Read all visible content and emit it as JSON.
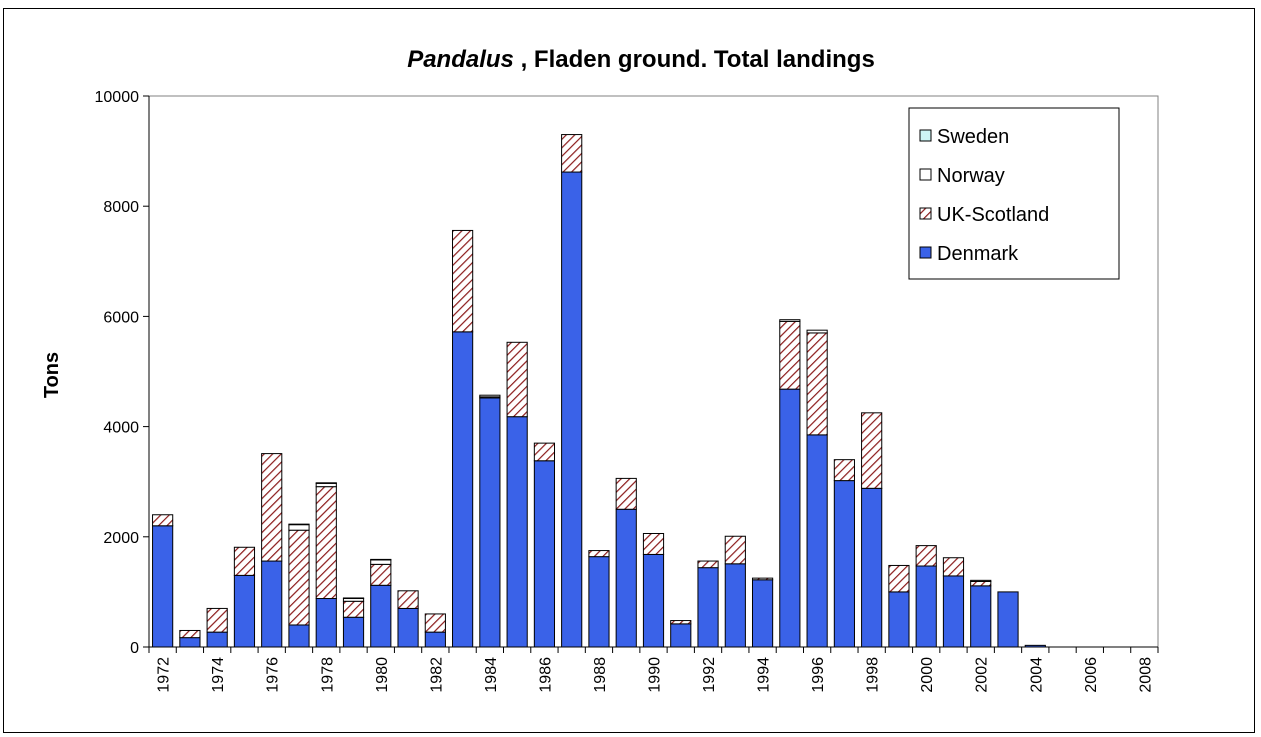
{
  "chart_data": {
    "type": "bar",
    "stacked": true,
    "title_italic": "Pandalus",
    "title_rest": " , Fladen ground. Total landings",
    "xlabel": "",
    "ylabel": "Tons",
    "ylim": [
      0,
      10000
    ],
    "yticks": [
      0,
      2000,
      4000,
      6000,
      8000,
      10000
    ],
    "categories": [
      "1972",
      "1973",
      "1974",
      "1975",
      "1976",
      "1977",
      "1978",
      "1979",
      "1980",
      "1981",
      "1982",
      "1983",
      "1984",
      "1985",
      "1986",
      "1987",
      "1988",
      "1989",
      "1990",
      "1991",
      "1992",
      "1993",
      "1994",
      "1995",
      "1996",
      "1997",
      "1998",
      "1999",
      "2000",
      "2001",
      "2002",
      "2003",
      "2004",
      "2005",
      "2006",
      "2007",
      "2008"
    ],
    "xtick_labels": [
      "1972",
      "",
      "1974",
      "",
      "1976",
      "",
      "1978",
      "",
      "1980",
      "",
      "1982",
      "",
      "1984",
      "",
      "1986",
      "",
      "1988",
      "",
      "1990",
      "",
      "1992",
      "",
      "1994",
      "",
      "1996",
      "",
      "1998",
      "",
      "2000",
      "",
      "2002",
      "",
      "2004",
      "",
      "2006",
      "",
      "2008"
    ],
    "series": [
      {
        "name": "Denmark",
        "color": "#3a62e8",
        "pattern": "solid",
        "values": [
          2200,
          170,
          270,
          1300,
          1560,
          400,
          880,
          540,
          1120,
          700,
          270,
          5720,
          4520,
          4180,
          3380,
          8620,
          1640,
          2500,
          1680,
          420,
          1440,
          1510,
          1220,
          4680,
          3850,
          3020,
          2880,
          1000,
          1470,
          1290,
          1110,
          1000,
          30,
          0,
          0,
          0,
          0
        ]
      },
      {
        "name": "UK-Scotland",
        "color": "#8b1a1a",
        "pattern": "hatch",
        "values": [
          200,
          130,
          430,
          510,
          1950,
          1720,
          2030,
          290,
          380,
          320,
          330,
          1840,
          20,
          1350,
          320,
          680,
          110,
          560,
          380,
          60,
          120,
          500,
          30,
          1230,
          1850,
          380,
          1370,
          480,
          370,
          330,
          80,
          0,
          0,
          0,
          0,
          0,
          0
        ]
      },
      {
        "name": "Norway",
        "color": "#ffffff",
        "pattern": "solid",
        "values": [
          0,
          0,
          0,
          0,
          0,
          100,
          60,
          50,
          80,
          0,
          0,
          0,
          30,
          0,
          0,
          0,
          0,
          0,
          0,
          0,
          0,
          0,
          0,
          30,
          50,
          0,
          0,
          0,
          0,
          0,
          20,
          0,
          0,
          0,
          0,
          0,
          0
        ]
      },
      {
        "name": "Sweden",
        "color": "#cdf5f5",
        "pattern": "solid",
        "values": [
          0,
          0,
          0,
          0,
          0,
          10,
          10,
          10,
          10,
          0,
          0,
          0,
          0,
          0,
          0,
          0,
          0,
          0,
          0,
          0,
          0,
          0,
          0,
          0,
          0,
          0,
          0,
          0,
          0,
          0,
          0,
          0,
          0,
          0,
          0,
          0,
          0
        ]
      }
    ],
    "legend_order": [
      "Sweden",
      "Norway",
      "UK-Scotland",
      "Denmark"
    ],
    "legend_position": "top-right",
    "grid": false
  }
}
